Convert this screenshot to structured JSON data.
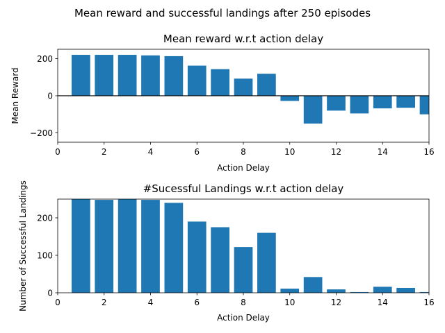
{
  "suptitle": "Mean reward and successful landings after 250 episodes",
  "colors": {
    "bar": "#1f77b4",
    "axis": "#000000",
    "background": "#ffffff"
  },
  "chart_data": [
    {
      "type": "bar",
      "title": "Mean reward w.r.t action delay",
      "xlabel": "Action Delay",
      "ylabel": "Mean Reward",
      "xlim": [
        0,
        16
      ],
      "ylim": [
        -250,
        250
      ],
      "xticks": [
        0,
        2,
        4,
        6,
        8,
        10,
        12,
        14,
        16
      ],
      "yticks": [
        -200,
        0,
        200
      ],
      "zero_line": true,
      "x": [
        1,
        2,
        3,
        4,
        5,
        6,
        7,
        8,
        9,
        10,
        11,
        12,
        13,
        14,
        15,
        16
      ],
      "values": [
        220,
        220,
        220,
        217,
        213,
        162,
        143,
        92,
        118,
        -28,
        -150,
        -80,
        -95,
        -68,
        -65,
        -100
      ]
    },
    {
      "type": "bar",
      "title": "#Sucessful Landings w.r.t action delay",
      "xlabel": "Action Delay",
      "ylabel": "Number of Successful Landings",
      "xlim": [
        0,
        16
      ],
      "ylim": [
        0,
        250
      ],
      "xticks": [
        0,
        2,
        4,
        6,
        8,
        10,
        12,
        14,
        16
      ],
      "yticks": [
        0,
        100,
        200
      ],
      "zero_line": false,
      "x": [
        1,
        2,
        3,
        4,
        5,
        6,
        7,
        8,
        9,
        10,
        11,
        12,
        13,
        14,
        15,
        16
      ],
      "values": [
        250,
        248,
        250,
        248,
        240,
        190,
        175,
        122,
        160,
        11,
        42,
        9,
        2,
        16,
        13,
        2
      ]
    }
  ]
}
